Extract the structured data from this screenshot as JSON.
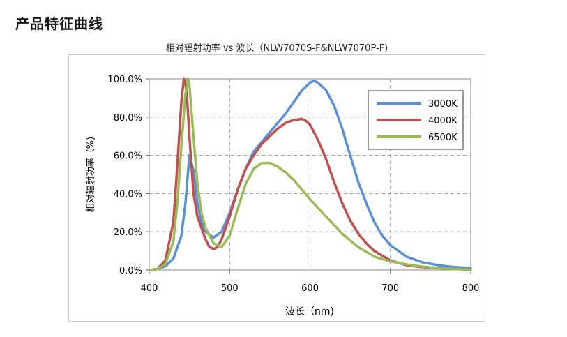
{
  "page": {
    "section_title": "产品特征曲线"
  },
  "chart_data": {
    "type": "line",
    "title": "相对辐射功率 vs 波长（NLW7070S-F&NLW7070P-F)",
    "xlabel": "波长（nm)",
    "ylabel": "相对辐射功率（%)",
    "xlim": [
      400,
      800
    ],
    "ylim": [
      0,
      100
    ],
    "xticks": [
      400,
      500,
      600,
      700,
      800
    ],
    "xtick_labels": [
      "400",
      "500",
      "600",
      "700",
      "800"
    ],
    "yticks": [
      0,
      20,
      40,
      60,
      80,
      100
    ],
    "ytick_labels": [
      "0.0%",
      "20.0%",
      "40.0%",
      "60.0%",
      "80.0%",
      "100.0%"
    ],
    "grid": true,
    "legend_position": "top-right",
    "series": [
      {
        "name": "3000K",
        "color": "#5b8fd6",
        "x": [
          400,
          410,
          420,
          430,
          440,
          445,
          448,
          450,
          455,
          460,
          465,
          470,
          480,
          490,
          500,
          510,
          520,
          530,
          540,
          550,
          560,
          570,
          580,
          590,
          600,
          605,
          610,
          620,
          630,
          640,
          650,
          660,
          670,
          680,
          690,
          700,
          720,
          740,
          760,
          780,
          800
        ],
        "y": [
          0,
          0.5,
          2,
          6,
          18,
          35,
          50,
          60,
          52,
          35,
          25,
          20,
          17,
          20,
          30,
          42,
          53,
          62,
          67,
          72,
          77,
          82,
          88,
          94,
          98,
          99,
          98,
          94,
          86,
          74,
          60,
          46,
          35,
          25,
          18,
          13,
          7,
          4,
          2.5,
          1.5,
          1
        ]
      },
      {
        "name": "4000K",
        "color": "#c0504d",
        "x": [
          400,
          410,
          420,
          430,
          435,
          440,
          443,
          445,
          447,
          450,
          455,
          460,
          465,
          470,
          475,
          480,
          485,
          490,
          500,
          510,
          520,
          530,
          540,
          550,
          560,
          570,
          580,
          590,
          595,
          600,
          610,
          620,
          630,
          640,
          650,
          660,
          670,
          680,
          700,
          720,
          740,
          760,
          780,
          800
        ],
        "y": [
          0,
          0.5,
          5,
          25,
          55,
          88,
          100,
          98,
          90,
          70,
          40,
          28,
          22,
          16,
          12,
          11,
          12,
          16,
          28,
          42,
          53,
          60,
          66,
          70,
          74,
          77,
          78.5,
          79,
          78,
          76,
          68,
          58,
          46,
          35,
          26,
          19,
          14,
          10,
          5,
          2.5,
          1.5,
          1,
          0.5,
          0.3
        ]
      },
      {
        "name": "6500K",
        "color": "#9bbb59",
        "x": [
          400,
          410,
          420,
          430,
          435,
          440,
          445,
          448,
          450,
          455,
          460,
          465,
          470,
          480,
          490,
          500,
          510,
          520,
          530,
          540,
          550,
          560,
          570,
          580,
          590,
          600,
          620,
          640,
          660,
          680,
          700,
          720,
          740,
          760,
          780,
          800
        ],
        "y": [
          0,
          0.5,
          3,
          15,
          35,
          65,
          92,
          100,
          97,
          70,
          45,
          30,
          22,
          14,
          12,
          18,
          32,
          45,
          53,
          56,
          56,
          54,
          51,
          47,
          42,
          37,
          28,
          19,
          12,
          7,
          4.5,
          3,
          1.8,
          1,
          0.5,
          0.3
        ]
      }
    ]
  }
}
